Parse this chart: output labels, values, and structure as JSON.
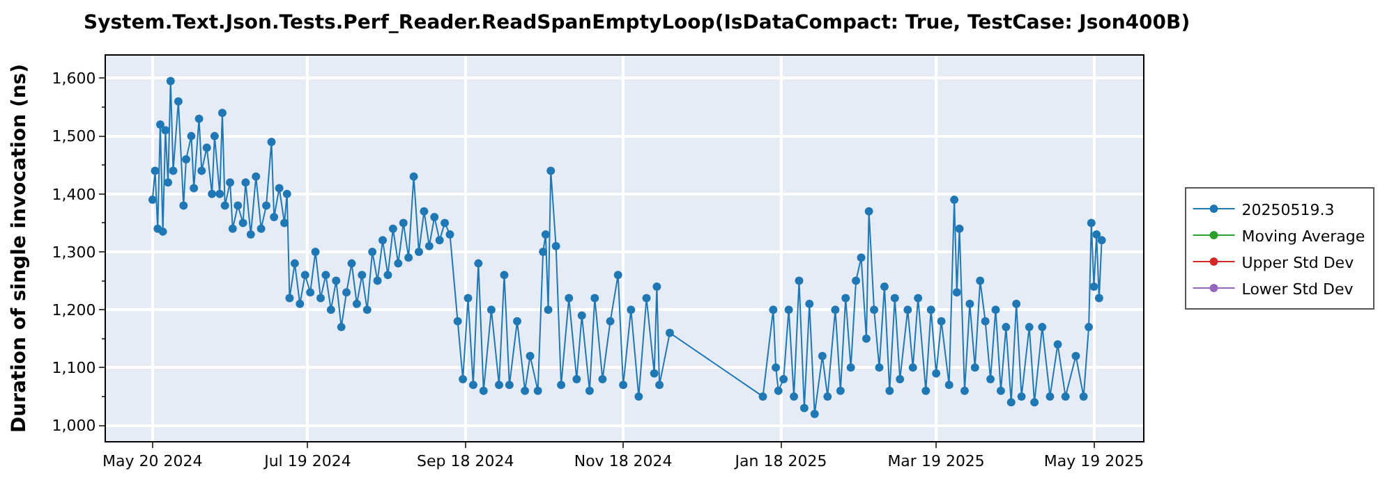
{
  "chart_data": {
    "type": "line",
    "title": "System.Text.Json.Tests.Perf_Reader.ReadSpanEmptyLoop(IsDataCompact: True, TestCase: Json400B)",
    "ylabel": "Duration of single invocation (ns)",
    "xlim": [
      "2024-05-02",
      "2025-06-07"
    ],
    "ylim": [
      973,
      1639
    ],
    "xticks": [
      {
        "value": "2024-05-20",
        "label": "May 20 2024"
      },
      {
        "value": "2024-07-19",
        "label": "Jul 19 2024"
      },
      {
        "value": "2024-09-18",
        "label": "Sep 18 2024"
      },
      {
        "value": "2024-11-18",
        "label": "Nov 18 2024"
      },
      {
        "value": "2025-01-18",
        "label": "Jan 18 2025"
      },
      {
        "value": "2025-03-19",
        "label": "Mar 19 2025"
      },
      {
        "value": "2025-05-19",
        "label": "May 19 2025"
      }
    ],
    "yticks": [
      {
        "value": 1000,
        "label": "1,000"
      },
      {
        "value": 1100,
        "label": "1,100"
      },
      {
        "value": 1200,
        "label": "1,200"
      },
      {
        "value": 1300,
        "label": "1,300"
      },
      {
        "value": 1400,
        "label": "1,400"
      },
      {
        "value": 1500,
        "label": "1,500"
      },
      {
        "value": 1600,
        "label": "1,600"
      }
    ],
    "grid": true,
    "legend": "right",
    "marker": "circle",
    "series": [
      {
        "name": "20250519.3",
        "color": "#1f77b4",
        "x": [
          "2024-05-20",
          "2024-05-21",
          "2024-05-22",
          "2024-05-23",
          "2024-05-24",
          "2024-05-25",
          "2024-05-26",
          "2024-05-27",
          "2024-05-28",
          "2024-05-30",
          "2024-06-01",
          "2024-06-02",
          "2024-06-04",
          "2024-06-05",
          "2024-06-07",
          "2024-06-08",
          "2024-06-10",
          "2024-06-12",
          "2024-06-13",
          "2024-06-15",
          "2024-06-16",
          "2024-06-17",
          "2024-06-19",
          "2024-06-20",
          "2024-06-22",
          "2024-06-24",
          "2024-06-25",
          "2024-06-27",
          "2024-06-29",
          "2024-07-01",
          "2024-07-03",
          "2024-07-05",
          "2024-07-06",
          "2024-07-08",
          "2024-07-10",
          "2024-07-11",
          "2024-07-12",
          "2024-07-14",
          "2024-07-16",
          "2024-07-18",
          "2024-07-20",
          "2024-07-22",
          "2024-07-24",
          "2024-07-26",
          "2024-07-28",
          "2024-07-30",
          "2024-08-01",
          "2024-08-03",
          "2024-08-05",
          "2024-08-07",
          "2024-08-09",
          "2024-08-11",
          "2024-08-13",
          "2024-08-15",
          "2024-08-17",
          "2024-08-19",
          "2024-08-21",
          "2024-08-23",
          "2024-08-25",
          "2024-08-27",
          "2024-08-29",
          "2024-08-31",
          "2024-09-02",
          "2024-09-04",
          "2024-09-06",
          "2024-09-08",
          "2024-09-10",
          "2024-09-12",
          "2024-09-15",
          "2024-09-17",
          "2024-09-19",
          "2024-09-21",
          "2024-09-23",
          "2024-09-25",
          "2024-09-28",
          "2024-10-01",
          "2024-10-03",
          "2024-10-05",
          "2024-10-08",
          "2024-10-11",
          "2024-10-13",
          "2024-10-16",
          "2024-10-18",
          "2024-10-19",
          "2024-10-20",
          "2024-10-21",
          "2024-10-23",
          "2024-10-25",
          "2024-10-28",
          "2024-10-31",
          "2024-11-02",
          "2024-11-05",
          "2024-11-07",
          "2024-11-10",
          "2024-11-13",
          "2024-11-16",
          "2024-11-18",
          "2024-11-21",
          "2024-11-24",
          "2024-11-27",
          "2024-11-30",
          "2024-12-01",
          "2024-12-02",
          "2024-12-06",
          "2025-01-11",
          "2025-01-15",
          "2025-01-16",
          "2025-01-17",
          "2025-01-19",
          "2025-01-21",
          "2025-01-23",
          "2025-01-25",
          "2025-01-27",
          "2025-01-29",
          "2025-01-31",
          "2025-02-03",
          "2025-02-05",
          "2025-02-08",
          "2025-02-10",
          "2025-02-12",
          "2025-02-14",
          "2025-02-16",
          "2025-02-18",
          "2025-02-20",
          "2025-02-21",
          "2025-02-23",
          "2025-02-25",
          "2025-02-27",
          "2025-03-01",
          "2025-03-03",
          "2025-03-05",
          "2025-03-08",
          "2025-03-10",
          "2025-03-12",
          "2025-03-15",
          "2025-03-17",
          "2025-03-19",
          "2025-03-21",
          "2025-03-24",
          "2025-03-26",
          "2025-03-27",
          "2025-03-28",
          "2025-03-30",
          "2025-04-01",
          "2025-04-03",
          "2025-04-05",
          "2025-04-07",
          "2025-04-09",
          "2025-04-11",
          "2025-04-13",
          "2025-04-15",
          "2025-04-17",
          "2025-04-19",
          "2025-04-21",
          "2025-04-24",
          "2025-04-26",
          "2025-04-29",
          "2025-05-02",
          "2025-05-05",
          "2025-05-08",
          "2025-05-12",
          "2025-05-15",
          "2025-05-17",
          "2025-05-18",
          "2025-05-19",
          "2025-05-20",
          "2025-05-21",
          "2025-05-22"
        ],
        "values": [
          1390,
          1440,
          1340,
          1520,
          1335,
          1510,
          1420,
          1595,
          1440,
          1560,
          1380,
          1460,
          1500,
          1410,
          1530,
          1440,
          1480,
          1400,
          1500,
          1400,
          1540,
          1380,
          1420,
          1340,
          1380,
          1350,
          1420,
          1330,
          1430,
          1340,
          1380,
          1490,
          1360,
          1410,
          1350,
          1400,
          1220,
          1280,
          1210,
          1260,
          1230,
          1300,
          1220,
          1260,
          1200,
          1250,
          1170,
          1230,
          1280,
          1210,
          1260,
          1200,
          1300,
          1250,
          1320,
          1260,
          1340,
          1280,
          1350,
          1290,
          1430,
          1300,
          1370,
          1310,
          1360,
          1320,
          1350,
          1330,
          1180,
          1080,
          1220,
          1070,
          1280,
          1060,
          1200,
          1070,
          1260,
          1070,
          1180,
          1060,
          1120,
          1060,
          1300,
          1330,
          1200,
          1440,
          1310,
          1070,
          1220,
          1080,
          1190,
          1060,
          1220,
          1080,
          1180,
          1260,
          1070,
          1200,
          1050,
          1220,
          1090,
          1240,
          1070,
          1160,
          1050,
          1200,
          1100,
          1060,
          1080,
          1200,
          1050,
          1250,
          1030,
          1210,
          1020,
          1120,
          1050,
          1200,
          1060,
          1220,
          1100,
          1250,
          1290,
          1150,
          1370,
          1200,
          1100,
          1240,
          1060,
          1220,
          1080,
          1200,
          1100,
          1220,
          1060,
          1200,
          1090,
          1180,
          1070,
          1390,
          1230,
          1340,
          1060,
          1210,
          1100,
          1250,
          1180,
          1080,
          1200,
          1060,
          1170,
          1040,
          1210,
          1050,
          1170,
          1040,
          1170,
          1050,
          1140,
          1050,
          1120,
          1050,
          1170,
          1350,
          1240,
          1330,
          1220,
          1320
        ]
      },
      {
        "name": "Moving Average",
        "color": "#2ca02c"
      },
      {
        "name": "Upper Std Dev",
        "color": "#d62728"
      },
      {
        "name": "Lower Std Dev",
        "color": "#9467bd"
      }
    ]
  }
}
